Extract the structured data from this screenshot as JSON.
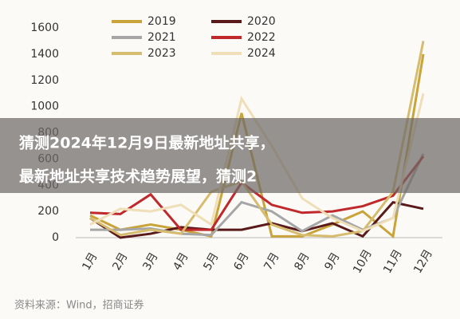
{
  "chart_data": {
    "type": "line",
    "categories": [
      "1月",
      "2月",
      "3月",
      "4月",
      "5月",
      "6月",
      "7月",
      "8月",
      "9月",
      "10月",
      "11月",
      "12月"
    ],
    "series": [
      {
        "name": "2019",
        "color": "#c8a43a",
        "values": [
          170,
          60,
          100,
          60,
          10,
          950,
          10,
          10,
          100,
          200,
          10,
          1400
        ]
      },
      {
        "name": "2020",
        "color": "#5a1a1a",
        "values": [
          150,
          0,
          30,
          80,
          60,
          60,
          110,
          50,
          110,
          10,
          270,
          220
        ]
      },
      {
        "name": "2021",
        "color": "#a6a6a6",
        "values": [
          60,
          60,
          70,
          30,
          20,
          270,
          200,
          50,
          170,
          60,
          150,
          640
        ]
      },
      {
        "name": "2022",
        "color": "#c0282c",
        "values": [
          190,
          180,
          330,
          60,
          60,
          420,
          250,
          190,
          200,
          240,
          320,
          620
        ]
      },
      {
        "name": "2023",
        "color": "#d6bc6e",
        "values": [
          150,
          20,
          60,
          30,
          350,
          430,
          100,
          20,
          10,
          50,
          350,
          1500
        ]
      },
      {
        "name": "2024",
        "color": "#efdfb8",
        "values": [
          100,
          220,
          200,
          250,
          100,
          1060,
          700,
          300,
          150,
          50,
          150,
          1100
        ]
      }
    ],
    "ylim": [
      0,
      1600
    ],
    "yticks": [
      0,
      200,
      400,
      600,
      800,
      1000,
      1200,
      1400,
      1600
    ],
    "grid": false
  },
  "overlay": {
    "lines": [
      "猜测2024年12月9日最新地址共享，",
      "最新地址共享技术趋势展望，猜测2"
    ]
  },
  "source": "资料来源：Wind，招商证券"
}
